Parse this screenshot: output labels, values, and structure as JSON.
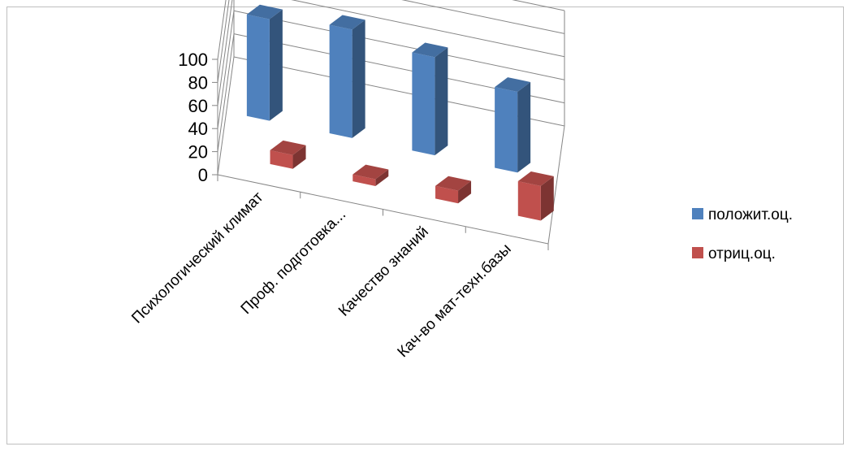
{
  "chart_data": {
    "type": "bar",
    "title": "",
    "xlabel": "",
    "ylabel": "",
    "categories": [
      "Психологический климат",
      "Проф. подготовка...",
      "Качество знаний",
      "Кач-во мат-техн.базы"
    ],
    "series": [
      {
        "name": "положит.оц.",
        "values": [
          88,
          94,
          85,
          70
        ]
      },
      {
        "name": "отриц.оц.",
        "values": [
          12,
          6,
          11,
          30
        ]
      }
    ],
    "ylim": [
      0,
      100
    ],
    "yticks": [
      0,
      20,
      40,
      60,
      80,
      100
    ],
    "grid": true,
    "legend": "right",
    "colors": {
      "series": [
        "#4f81bd",
        "#c0504d"
      ],
      "gridline": "#868686"
    }
  }
}
